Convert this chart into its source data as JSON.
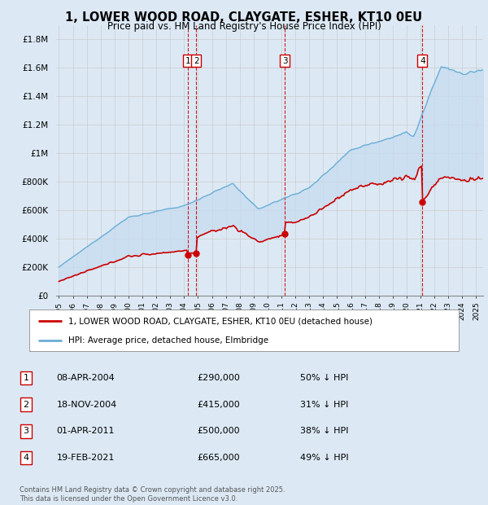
{
  "title": "1, LOWER WOOD ROAD, CLAYGATE, ESHER, KT10 0EU",
  "subtitle": "Price paid vs. HM Land Registry's House Price Index (HPI)",
  "footer": "Contains HM Land Registry data © Crown copyright and database right 2025.\nThis data is licensed under the Open Government Licence v3.0.",
  "legend_red": "1, LOWER WOOD ROAD, CLAYGATE, ESHER, KT10 0EU (detached house)",
  "legend_blue": "HPI: Average price, detached house, Elmbridge",
  "transactions": [
    {
      "num": 1,
      "date": "08-APR-2004",
      "price": 290000,
      "pct": "50% ↓ HPI",
      "x_year": 2004.27
    },
    {
      "num": 2,
      "date": "18-NOV-2004",
      "price": 415000,
      "pct": "31% ↓ HPI",
      "x_year": 2004.88
    },
    {
      "num": 3,
      "date": "01-APR-2011",
      "price": 500000,
      "pct": "38% ↓ HPI",
      "x_year": 2011.25
    },
    {
      "num": 4,
      "date": "19-FEB-2021",
      "price": 665000,
      "pct": "49% ↓ HPI",
      "x_year": 2021.13
    }
  ],
  "bg_color": "#dce9f5",
  "red_color": "#cc0000",
  "blue_color": "#6aaed6",
  "fill_color": "#c6dcf0",
  "vline_color": "#cc0000",
  "grid_color": "#cccccc",
  "ylim": [
    0,
    1900000
  ],
  "xlim": [
    1994.8,
    2025.5
  ],
  "yticks": [
    0,
    200000,
    400000,
    600000,
    800000,
    1000000,
    1200000,
    1400000,
    1600000,
    1800000
  ],
  "ytick_labels": [
    "£0",
    "£200K",
    "£400K",
    "£600K",
    "£800K",
    "£1M",
    "£1.2M",
    "£1.4M",
    "£1.6M",
    "£1.8M"
  ],
  "xticks": [
    1995,
    1996,
    1997,
    1998,
    1999,
    2000,
    2001,
    2002,
    2003,
    2004,
    2005,
    2006,
    2007,
    2008,
    2009,
    2010,
    2011,
    2012,
    2013,
    2014,
    2015,
    2016,
    2017,
    2018,
    2019,
    2020,
    2021,
    2022,
    2023,
    2024,
    2025
  ]
}
